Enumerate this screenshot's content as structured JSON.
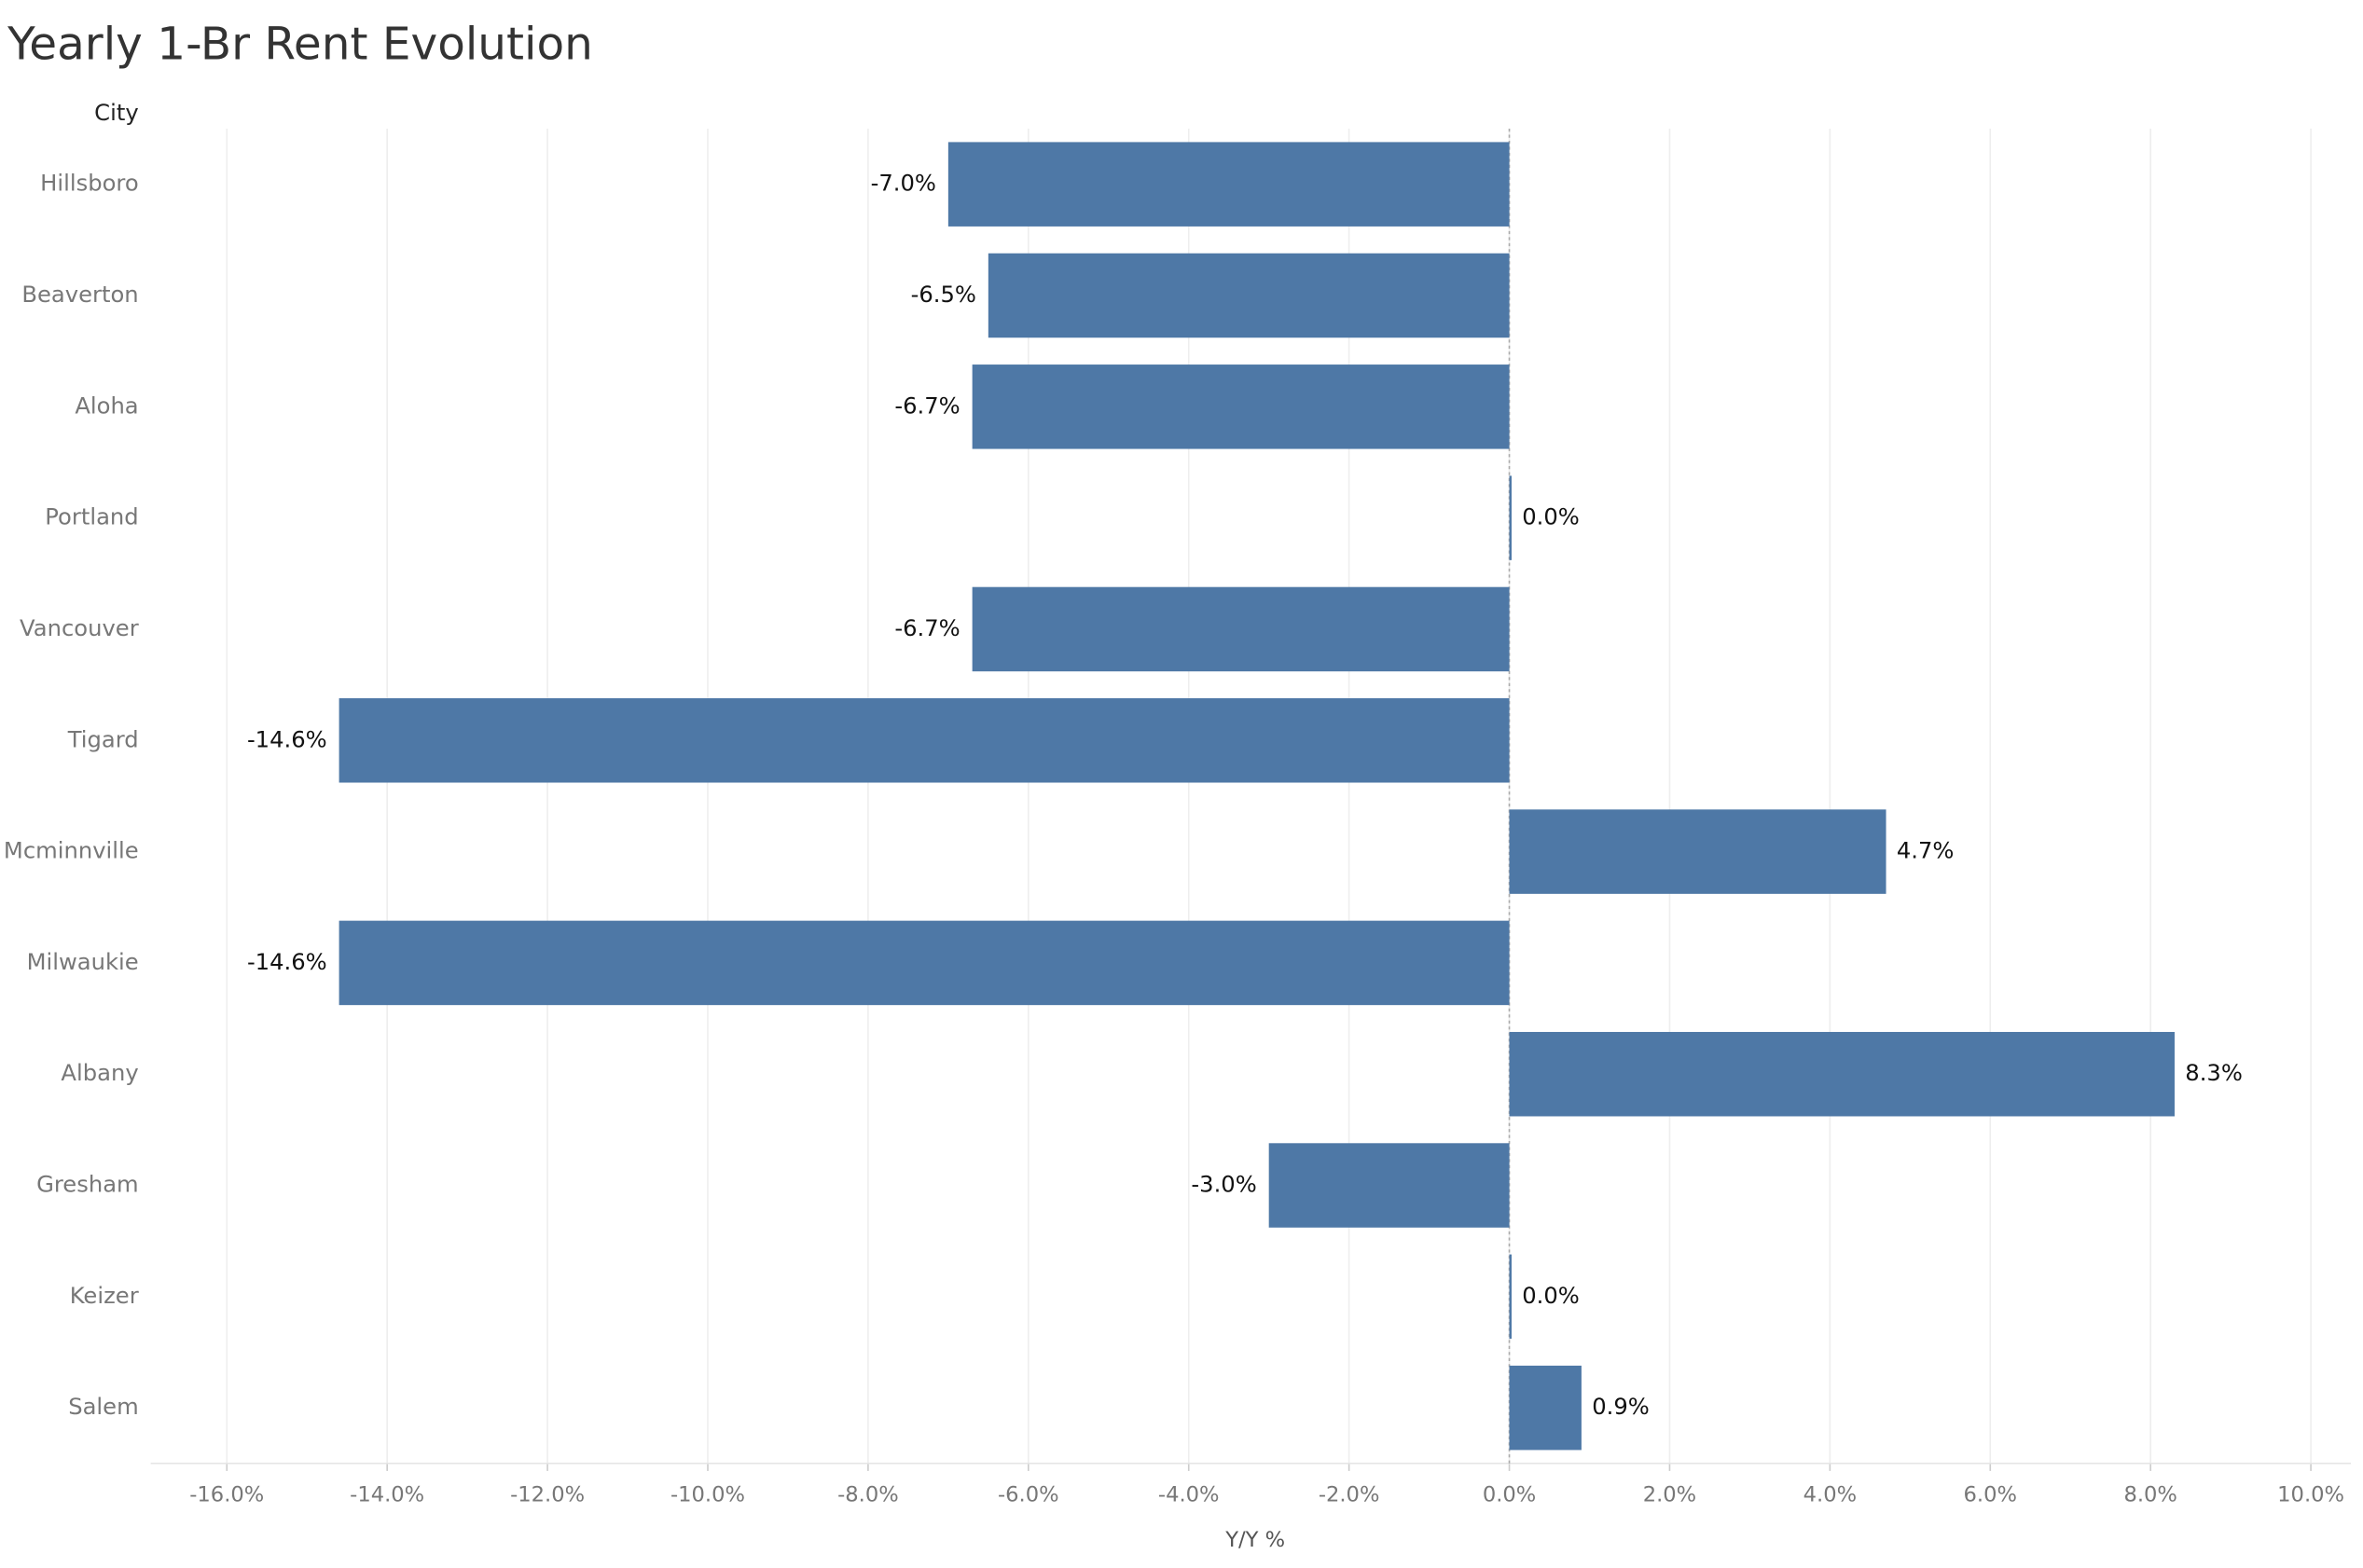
{
  "chart_data": {
    "type": "hbar",
    "title": "Yearly 1-Br Rent Evolution",
    "y_axis_header": "City",
    "x_axis_label": "Y/Y %",
    "categories": [
      "Hillsboro",
      "Beaverton",
      "Aloha",
      "Portland",
      "Vancouver",
      "Tigard",
      "Mcminnville",
      "Milwaukie",
      "Albany",
      "Gresham",
      "Keizer",
      "Salem"
    ],
    "values": [
      -7.0,
      -6.5,
      -6.7,
      0.0,
      -6.7,
      -14.6,
      4.7,
      -14.6,
      8.3,
      -3.0,
      0.0,
      0.9
    ],
    "value_labels": [
      "-7.0%",
      "-6.5%",
      "-6.7%",
      "0.0%",
      "-6.7%",
      "-14.6%",
      "4.7%",
      "-14.6%",
      "8.3%",
      "-3.0%",
      "0.0%",
      "0.9%"
    ],
    "color": "#4e78a6",
    "xlim": [
      -16.95,
      10.5
    ],
    "xticks": [
      {
        "value": -16,
        "label": "-16.0%"
      },
      {
        "value": -14,
        "label": "-14.0%"
      },
      {
        "value": -12,
        "label": "-12.0%"
      },
      {
        "value": -10,
        "label": "-10.0%"
      },
      {
        "value": -8,
        "label": "-8.0%"
      },
      {
        "value": -6,
        "label": "-6.0%"
      },
      {
        "value": -4,
        "label": "-4.0%"
      },
      {
        "value": -2,
        "label": "-2.0%"
      },
      {
        "value": 0,
        "label": "0.0%"
      },
      {
        "value": 2,
        "label": "2.0%"
      },
      {
        "value": 4,
        "label": "4.0%"
      },
      {
        "value": 6,
        "label": "6.0%"
      },
      {
        "value": 8,
        "label": "8.0%"
      },
      {
        "value": 10,
        "label": "10.0%"
      }
    ],
    "grid": true
  }
}
